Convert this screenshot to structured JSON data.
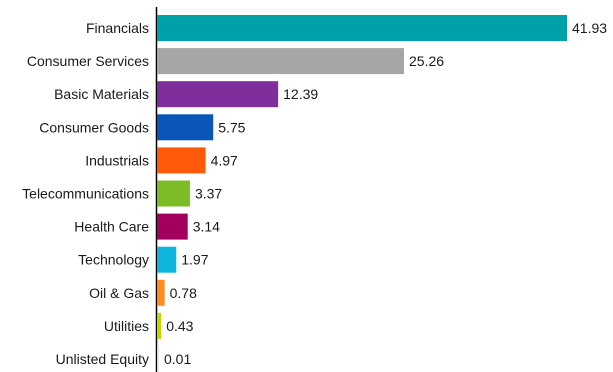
{
  "chart_data": {
    "type": "bar",
    "orientation": "horizontal",
    "categories": [
      "Financials",
      "Consumer Services",
      "Basic Materials",
      "Consumer Goods",
      "Industrials",
      "Telecommunications",
      "Health Care",
      "Technology",
      "Oil & Gas",
      "Utilities",
      "Unlisted Equity"
    ],
    "values": [
      41.93,
      25.26,
      12.39,
      5.75,
      4.97,
      3.37,
      3.14,
      1.97,
      0.78,
      0.43,
      0.01
    ],
    "value_labels": [
      "41.93",
      "25.26",
      "12.39",
      "5.75",
      "4.97",
      "3.37",
      "3.14",
      "1.97",
      "0.78",
      "0.43",
      "0.01"
    ],
    "colors": [
      "#00a0a8",
      "#a6a6a6",
      "#7f2e9c",
      "#0a56b8",
      "#ff5a0a",
      "#7cbd25",
      "#a3005e",
      "#10b5de",
      "#ff8b1f",
      "#c8d400",
      "#e0e0e0"
    ],
    "title": "",
    "xlabel": "",
    "ylabel": "",
    "xlim": [
      0,
      41.93
    ],
    "grid": false,
    "legend": "none"
  }
}
